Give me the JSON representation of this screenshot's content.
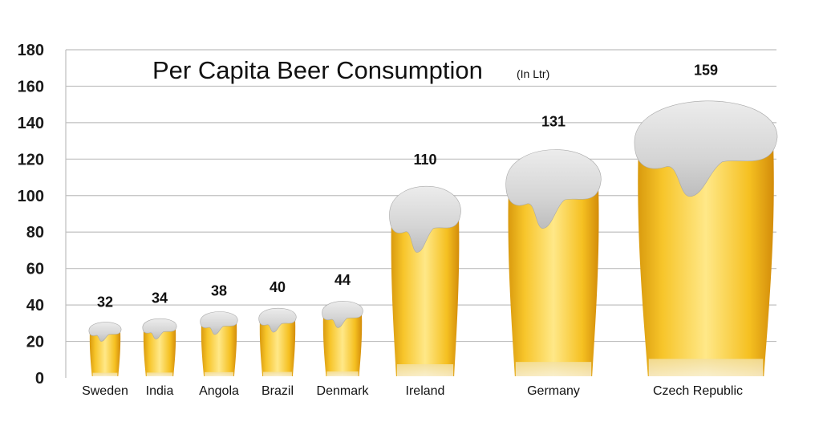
{
  "chart_data": {
    "type": "bar",
    "title": "Per Capita Beer Consumption",
    "subtitle": "(In Ltr)",
    "xlabel": "",
    "ylabel": "",
    "categories": [
      "Sweden",
      "India",
      "Angola",
      "Brazil",
      "Denmark",
      "Ireland",
      "Germany",
      "Czech Republic"
    ],
    "values": [
      32,
      34,
      38,
      40,
      44,
      110,
      131,
      159
    ],
    "ylim": [
      0,
      180
    ],
    "yticks": [
      0,
      20,
      40,
      60,
      80,
      100,
      120,
      140,
      160,
      180
    ],
    "grid": true,
    "legend": "none",
    "colors": {
      "beer_light": "#ffe27a",
      "beer_mid": "#f6c21f",
      "beer_dark": "#d9920b",
      "foam": "#d6d6d6",
      "foam_shadow": "#a9a9a9",
      "grid": "#bfbfbf"
    }
  }
}
